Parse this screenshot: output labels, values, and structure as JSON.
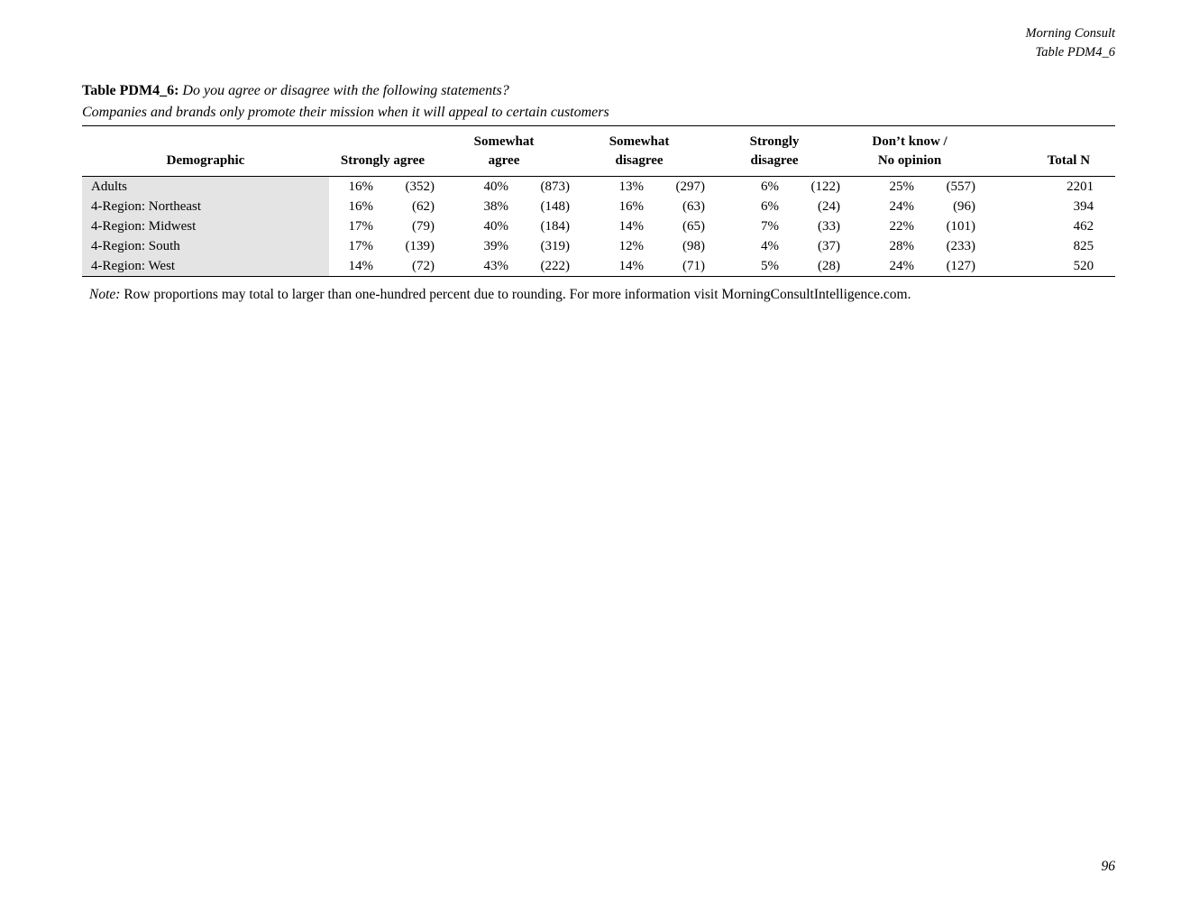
{
  "page": {
    "header": {
      "line1": "Morning Consult",
      "line2": "Table PDM4_6"
    },
    "title": {
      "label": "Table PDM4_6:",
      "question": "Do you agree or disagree with the following statements?",
      "subtitle": "Companies and brands only promote their mission when it will appeal to certain customers"
    },
    "note_label": "Note:",
    "note": "Row proportions may total to larger than one-hundred percent due to rounding. For more information visit MorningConsultIntelligence.com.",
    "page_number": "96"
  },
  "table": {
    "columns": {
      "demographic": "Demographic",
      "strongly_agree": "Strongly agree",
      "somewhat_agree": "Somewhat\nagree",
      "somewhat_disagree": "Somewhat\ndisagree",
      "strongly_disagree": "Strongly\ndisagree",
      "dont_know": "Don’t know /\nNo opinion",
      "total_n": "Total N"
    },
    "rows": [
      {
        "demographic": "Adults",
        "values": [
          [
            "16%",
            "(352)"
          ],
          [
            "40%",
            "(873)"
          ],
          [
            "13%",
            "(297)"
          ],
          [
            "6%",
            "(122)"
          ],
          [
            "25%",
            "(557)"
          ]
        ],
        "total": "2201"
      },
      {
        "demographic": "4-Region: Northeast",
        "values": [
          [
            "16%",
            "(62)"
          ],
          [
            "38%",
            "(148)"
          ],
          [
            "16%",
            "(63)"
          ],
          [
            "6%",
            "(24)"
          ],
          [
            "24%",
            "(96)"
          ]
        ],
        "total": "394"
      },
      {
        "demographic": "4-Region: Midwest",
        "values": [
          [
            "17%",
            "(79)"
          ],
          [
            "40%",
            "(184)"
          ],
          [
            "14%",
            "(65)"
          ],
          [
            "7%",
            "(33)"
          ],
          [
            "22%",
            "(101)"
          ]
        ],
        "total": "462"
      },
      {
        "demographic": "4-Region: South",
        "values": [
          [
            "17%",
            "(139)"
          ],
          [
            "39%",
            "(319)"
          ],
          [
            "12%",
            "(98)"
          ],
          [
            "4%",
            "(37)"
          ],
          [
            "28%",
            "(233)"
          ]
        ],
        "total": "825"
      },
      {
        "demographic": "4-Region: West",
        "values": [
          [
            "14%",
            "(72)"
          ],
          [
            "43%",
            "(222)"
          ],
          [
            "14%",
            "(71)"
          ],
          [
            "5%",
            "(28)"
          ],
          [
            "24%",
            "(127)"
          ]
        ],
        "total": "520"
      }
    ]
  }
}
